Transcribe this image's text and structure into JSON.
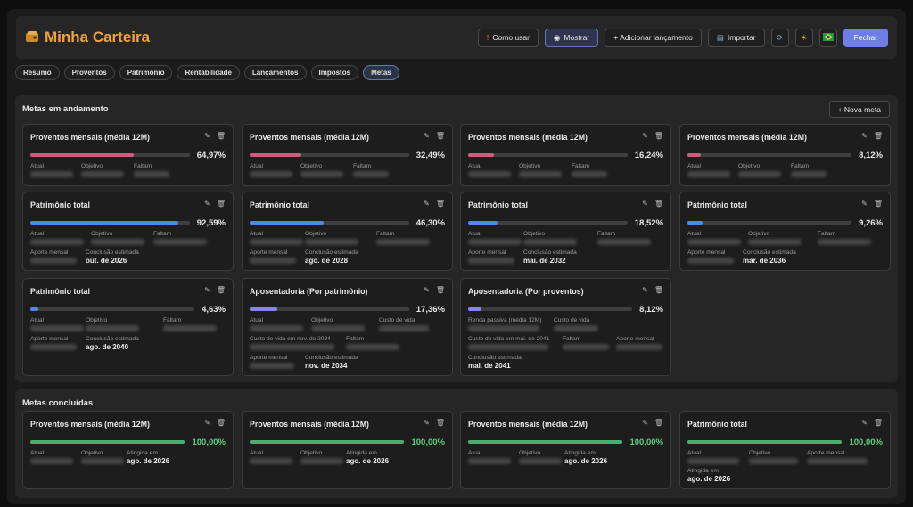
{
  "header": {
    "logo_icon": "wallet-icon",
    "title": "Minha Carteira",
    "buttons": {
      "help": "Como usar",
      "show": "Mostrar",
      "add": "+ Adicionar lançamento",
      "import": "Importar",
      "close": "Fechar"
    }
  },
  "tabs": [
    "Resumo",
    "Proventos",
    "Patrimônio",
    "Rentabilidade",
    "Lançamentos",
    "Impostos",
    "Metas"
  ],
  "active_tab": "Metas",
  "colors": {
    "accent": "#6f7de8",
    "title": "#f0a33c",
    "pink": "#d9577f",
    "blue": "#4f86e8",
    "purple": "#8a84e6",
    "green": "#4caf6e"
  },
  "in_progress": {
    "title": "Metas em andamento",
    "new_goal": "+ Nova meta",
    "cards": [
      {
        "title": "Proventos mensais (média 12M)",
        "progress": "64,97%",
        "fraction": 0.6497,
        "color": "pink",
        "labels": [
          "Atual",
          "Objetivo",
          "Faltam"
        ]
      },
      {
        "title": "Proventos mensais (média 12M)",
        "progress": "32,49%",
        "fraction": 0.3249,
        "color": "pink",
        "labels": [
          "Atual",
          "Objetivo",
          "Faltam"
        ]
      },
      {
        "title": "Proventos mensais (média 12M)",
        "progress": "16,24%",
        "fraction": 0.1624,
        "color": "pink",
        "labels": [
          "Atual",
          "Objetivo",
          "Faltam"
        ]
      },
      {
        "title": "Proventos mensais (média 12M)",
        "progress": "8,12%",
        "fraction": 0.0812,
        "color": "pink",
        "labels": [
          "Atual",
          "Objetivo",
          "Faltam"
        ]
      },
      {
        "title": "Patrimônio total",
        "progress": "92,59%",
        "fraction": 0.9259,
        "color": "blue",
        "labels": [
          "Atual",
          "Objetivo",
          "Faltam",
          "Aporte mensal",
          "Conclusão estimada"
        ],
        "estimate": "out. de 2026"
      },
      {
        "title": "Patrimônio total",
        "progress": "46,30%",
        "fraction": 0.463,
        "color": "blue",
        "labels": [
          "Atual",
          "Objetivo",
          "Faltam",
          "Aporte mensal",
          "Conclusão estimada"
        ],
        "estimate": "ago. de 2028"
      },
      {
        "title": "Patrimônio total",
        "progress": "18,52%",
        "fraction": 0.1852,
        "color": "blue",
        "labels": [
          "Atual",
          "Objetivo",
          "Faltam",
          "Aporte mensal",
          "Conclusão estimada"
        ],
        "estimate": "mai. de 2032"
      },
      {
        "title": "Patrimônio total",
        "progress": "9,26%",
        "fraction": 0.0926,
        "color": "blue",
        "labels": [
          "Atual",
          "Objetivo",
          "Faltam",
          "Aporte mensal",
          "Conclusão estimada"
        ],
        "estimate": "mar. de 2036"
      },
      {
        "title": "Patrimônio total",
        "progress": "4,63%",
        "fraction": 0.0463,
        "color": "blue",
        "labels": [
          "Atual",
          "Objetivo",
          "Faltam",
          "Aporte mensal",
          "Conclusão estimada"
        ],
        "estimate": "ago. de 2040"
      },
      {
        "title": "Aposentadoria (Por patrimônio)",
        "progress": "17,36%",
        "fraction": 0.1736,
        "color": "purple",
        "labels": [
          "Atual",
          "Objetivo",
          "Custo de vida",
          "Custo de vida em nov. de 2034",
          "Faltam",
          "Aporte mensal",
          "Conclusão estimada"
        ],
        "estimate": "nov. de 2034"
      },
      {
        "title": "Aposentadoria (Por proventos)",
        "progress": "8,12%",
        "fraction": 0.0812,
        "color": "purple",
        "labels": [
          "Renda passiva (média 12M)",
          "Custo de vida",
          "Custo de vida em mai. de 2041",
          "Faltam",
          "Aporte mensal",
          "Conclusão estimada"
        ],
        "estimate": "mai. de 2041"
      }
    ]
  },
  "completed": {
    "title": "Metas concluídas",
    "cards": [
      {
        "title": "Proventos mensais (média 12M)",
        "progress": "100,00%",
        "fraction": 1.0,
        "labels": [
          "Atual",
          "Objetivo",
          "Atingida em"
        ],
        "reached": "ago. de 2026"
      },
      {
        "title": "Proventos mensais (média 12M)",
        "progress": "100,00%",
        "fraction": 1.0,
        "labels": [
          "Atual",
          "Objetivo",
          "Atingida em"
        ],
        "reached": "ago. de 2026"
      },
      {
        "title": "Proventos mensais (média 12M)",
        "progress": "100,00%",
        "fraction": 1.0,
        "labels": [
          "Atual",
          "Objetivo",
          "Atingida em"
        ],
        "reached": "ago. de 2026"
      },
      {
        "title": "Patrimônio total",
        "progress": "100,00%",
        "fraction": 1.0,
        "labels": [
          "Atual",
          "Objetivo",
          "Aporte mensal",
          "Atingida em"
        ],
        "reached": "ago. de 2026"
      }
    ]
  }
}
